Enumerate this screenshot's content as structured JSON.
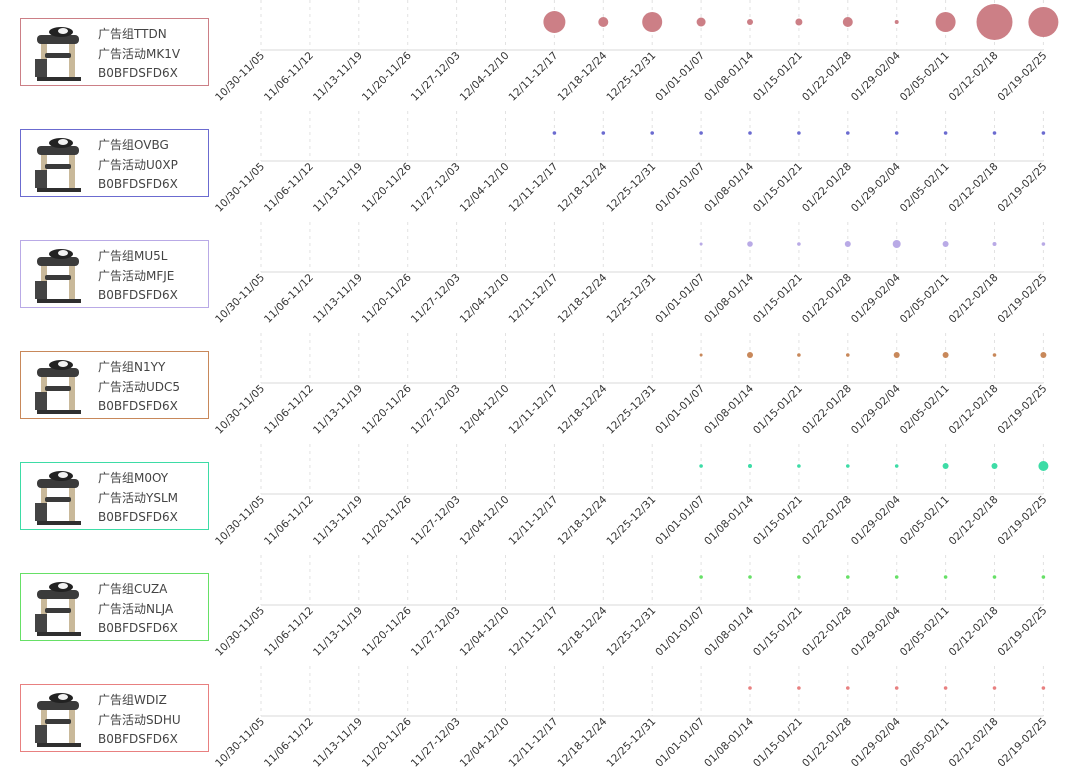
{
  "weeks": [
    "10/30-11/05",
    "11/06-11/12",
    "11/13-11/19",
    "11/20-11/26",
    "11/27-12/03",
    "12/04-12/10",
    "12/11-12/17",
    "12/18-12/24",
    "12/25-12/31",
    "01/01-01/07",
    "01/08-01/14",
    "01/15-01/21",
    "01/22-01/28",
    "01/29-02/04",
    "02/05-02/11",
    "02/12-02/18",
    "02/19-02/25"
  ],
  "rows": [
    {
      "group": "广告组TTDN",
      "campaign": "广告活动MK1V",
      "asin": "B0BFDSFD6X",
      "color": "#cc7f86"
    },
    {
      "group": "广告组OVBG",
      "campaign": "广告活动U0XP",
      "asin": "B0BFDSFD6X",
      "color": "#6b6bd0"
    },
    {
      "group": "广告组MU5L",
      "campaign": "广告活动MFJE",
      "asin": "B0BFDSFD6X",
      "color": "#b9aae6"
    },
    {
      "group": "广告组N1YY",
      "campaign": "广告活动UDC5",
      "asin": "B0BFDSFD6X",
      "color": "#c8885a"
    },
    {
      "group": "广告组M0OY",
      "campaign": "广告活动YSLM",
      "asin": "B0BFDSFD6X",
      "color": "#3ddca6"
    },
    {
      "group": "广告组CUZA",
      "campaign": "广告活动NLJA",
      "asin": "B0BFDSFD6X",
      "color": "#66e066"
    },
    {
      "group": "广告组WDIZ",
      "campaign": "广告活动SDHU",
      "asin": "B0BFDSFD6X",
      "color": "#e88080"
    }
  ],
  "chart_data": [
    {
      "type": "scatter",
      "x": [
        "12/11-12/17",
        "12/18-12/24",
        "12/25-12/31",
        "01/01-01/07",
        "01/08-01/14",
        "01/15-01/21",
        "01/22-01/28",
        "01/29-02/04",
        "02/05-02/11",
        "02/12-02/18",
        "02/19-02/25"
      ],
      "values": [
        11,
        5,
        10,
        4.5,
        3,
        3.5,
        5,
        2,
        10,
        18,
        15
      ]
    },
    {
      "type": "scatter",
      "x": [
        "12/11-12/17",
        "12/18-12/24",
        "12/25-12/31",
        "01/01-01/07",
        "01/08-01/14",
        "01/15-01/21",
        "01/22-01/28",
        "01/29-02/04",
        "02/05-02/11",
        "02/12-02/18",
        "02/19-02/25"
      ],
      "values": [
        1.8,
        1.8,
        1.8,
        1.8,
        1.8,
        1.8,
        1.8,
        1.8,
        1.8,
        1.8,
        1.8
      ]
    },
    {
      "type": "scatter",
      "x": [
        "01/01-01/07",
        "01/08-01/14",
        "01/15-01/21",
        "01/22-01/28",
        "01/29-02/04",
        "02/05-02/11",
        "02/12-02/18",
        "02/19-02/25"
      ],
      "values": [
        1.5,
        2.8,
        1.8,
        3,
        4,
        3,
        2,
        1.8
      ]
    },
    {
      "type": "scatter",
      "x": [
        "01/01-01/07",
        "01/08-01/14",
        "01/15-01/21",
        "01/22-01/28",
        "01/29-02/04",
        "02/05-02/11",
        "02/12-02/18",
        "02/19-02/25"
      ],
      "values": [
        1.5,
        3,
        1.8,
        1.8,
        3,
        3,
        1.8,
        3
      ]
    },
    {
      "type": "scatter",
      "x": [
        "01/01-01/07",
        "01/08-01/14",
        "01/15-01/21",
        "01/22-01/28",
        "01/29-02/04",
        "02/05-02/11",
        "02/12-02/18",
        "02/19-02/25"
      ],
      "values": [
        1.8,
        2,
        1.8,
        1.8,
        1.8,
        3,
        3,
        5
      ]
    },
    {
      "type": "scatter",
      "x": [
        "01/01-01/07",
        "01/08-01/14",
        "01/15-01/21",
        "01/22-01/28",
        "01/29-02/04",
        "02/05-02/11",
        "02/12-02/18",
        "02/19-02/25"
      ],
      "values": [
        1.8,
        1.8,
        1.8,
        1.8,
        1.8,
        1.8,
        1.8,
        1.8
      ]
    },
    {
      "type": "scatter",
      "x": [
        "01/08-01/14",
        "01/15-01/21",
        "01/22-01/28",
        "01/29-02/04",
        "02/05-02/11",
        "02/12-02/18",
        "02/19-02/25"
      ],
      "values": [
        1.8,
        1.8,
        1.8,
        1.8,
        1.8,
        1.8,
        1.8
      ]
    }
  ]
}
